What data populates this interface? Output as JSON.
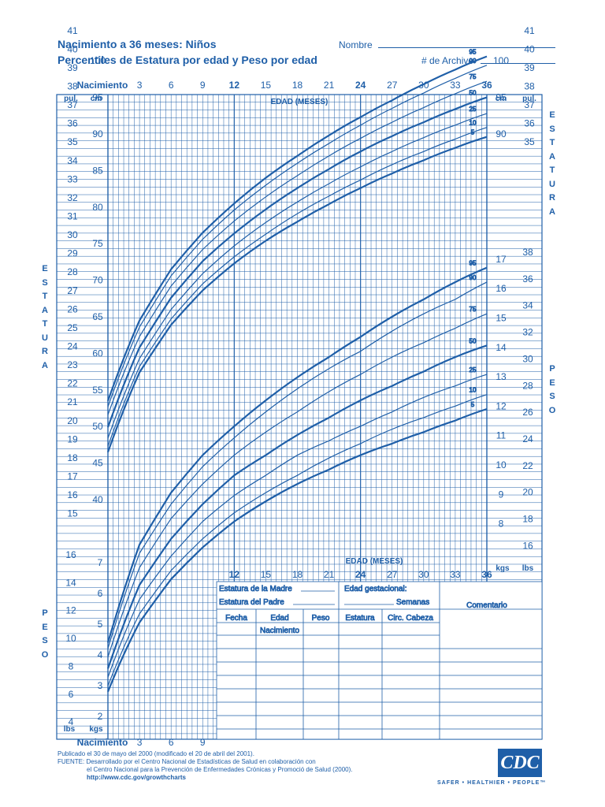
{
  "header": {
    "title_line1": "Nacimiento a 36 meses:  Niños",
    "title_line2": "Percentiles de Estatura por edad y Peso por edad",
    "name_label": "Nombre",
    "record_label": "# de Archivo"
  },
  "axis": {
    "age_top_labels": [
      "Nacimiento",
      "3",
      "6",
      "9",
      "12",
      "15",
      "18",
      "21",
      "24",
      "27",
      "30",
      "33",
      "36"
    ],
    "age_bottom_labels": [
      "Nacimiento",
      "3",
      "6",
      "9"
    ],
    "age_mid_labels": [
      "12",
      "15",
      "18",
      "21",
      "24",
      "27",
      "30",
      "33",
      "36"
    ],
    "edad_label": "EDAD (MESES)",
    "pul_label": "pul.",
    "cm_label": "cm",
    "kgs_label": "kgs",
    "lbs_label": "lbs",
    "left_inches": [
      "41",
      "40",
      "39",
      "38",
      "37",
      "36",
      "35",
      "34",
      "33",
      "32",
      "31",
      "30",
      "29",
      "28",
      "27",
      "26",
      "25",
      "24",
      "23",
      "22",
      "21",
      "20",
      "19",
      "18",
      "17",
      "16",
      "15"
    ],
    "left_cm": [
      "100",
      "95",
      "90",
      "85",
      "80",
      "75",
      "70",
      "65",
      "60",
      "55",
      "50",
      "45",
      "40"
    ],
    "right_inches_top": [
      "41",
      "40",
      "39",
      "38",
      "37",
      "36",
      "35"
    ],
    "right_cm_top": [
      "100",
      "95",
      "90"
    ],
    "right_kg": [
      "17",
      "16",
      "15",
      "14",
      "13",
      "12",
      "11",
      "10",
      "9",
      "8"
    ],
    "right_lbs": [
      "38",
      "36",
      "34",
      "32",
      "30",
      "28",
      "26",
      "24",
      "22",
      "20",
      "18",
      "16"
    ],
    "left_lbs": [
      "16",
      "14",
      "12",
      "10",
      "8",
      "6",
      "4"
    ],
    "left_kg": [
      "7",
      "6",
      "5",
      "4",
      "3",
      "2"
    ],
    "estatura_letters": [
      "E",
      "S",
      "T",
      "A",
      "T",
      "U",
      "R",
      "A"
    ],
    "peso_letters": [
      "P",
      "E",
      "S",
      "O"
    ]
  },
  "table": {
    "mother_height": "Estatura de la Madre",
    "father_height": "Estatura del Padre",
    "gest_age": "Edad gestacional:",
    "weeks": "Semanas",
    "comment": "Comentario",
    "columns": [
      "Fecha",
      "Edad",
      "Peso",
      "Estatura",
      "Circ. Cabeza"
    ],
    "edad_sub": "Nacimiento"
  },
  "footer": {
    "line1": "Publicado el 30 de mayo del 2000 (modificado el 20 de abril del 2001).",
    "line2": "FUENTE: Desarrollado por el Centro Nacional de Estadísticas de Salud en colaboración con",
    "line3": "el Centro Nacional para la Prevención de Enfermedades Crónicas y Promoció de Salud (2000).",
    "line4": "http://www.cdc.gov/growthcharts",
    "logo": "CDC",
    "tagline": "SAFER • HEALTHIER • PEOPLE™"
  },
  "chart_data": [
    {
      "type": "line",
      "x": [
        0,
        3,
        6,
        9,
        12,
        15,
        18,
        21,
        24,
        27,
        30,
        33,
        36
      ],
      "xlim": [
        0,
        36
      ],
      "ylim": [
        40,
        104
      ],
      "series": [
        {
          "name": "95",
          "values": [
            53.5,
            64.5,
            71.5,
            76.5,
            80.5,
            84,
            87,
            89.8,
            92.3,
            94.6,
            96.8,
            98.8,
            100.6
          ]
        },
        {
          "name": "90",
          "values": [
            52.7,
            63.6,
            70.6,
            75.6,
            79.6,
            83,
            86,
            88.7,
            91.2,
            93.5,
            95.6,
            97.6,
            99.4
          ]
        },
        {
          "name": "75",
          "values": [
            51.6,
            62.3,
            69.2,
            74.2,
            78.1,
            81.4,
            84.3,
            87,
            89.4,
            91.6,
            93.6,
            95.5,
            97.2
          ]
        },
        {
          "name": "50",
          "values": [
            49.9,
            60.8,
            67.6,
            72.6,
            76.4,
            79.7,
            82.6,
            85.2,
            87.6,
            89.7,
            91.6,
            93.4,
            95
          ]
        },
        {
          "name": "25",
          "values": [
            48.4,
            59.3,
            66,
            70.9,
            74.7,
            77.9,
            80.7,
            83.2,
            85.5,
            87.6,
            89.5,
            91.2,
            92.8
          ]
        },
        {
          "name": "10",
          "values": [
            47.3,
            58.2,
            64.7,
            69.5,
            73.2,
            76.3,
            79.1,
            81.5,
            83.7,
            85.8,
            87.6,
            89.3,
            90.9
          ]
        },
        {
          "name": "5",
          "values": [
            46.5,
            57.4,
            63.9,
            68.6,
            72.3,
            75.4,
            78,
            80.4,
            82.6,
            84.6,
            86.4,
            88.1,
            89.6
          ]
        }
      ]
    },
    {
      "type": "line",
      "x": [
        0,
        3,
        6,
        9,
        12,
        15,
        18,
        21,
        24,
        27,
        30,
        33,
        36
      ],
      "xlim": [
        0,
        36
      ],
      "ylim": [
        1.6,
        18.5
      ],
      "series": [
        {
          "name": "95",
          "values": [
            4.4,
            7.8,
            9.6,
            10.9,
            11.9,
            12.8,
            13.6,
            14.3,
            15,
            15.7,
            16.3,
            16.9,
            17.4
          ]
        },
        {
          "name": "90",
          "values": [
            4.2,
            7.5,
            9.2,
            10.5,
            11.5,
            12.4,
            13.2,
            13.9,
            14.5,
            15.2,
            15.8,
            16.3,
            16.9
          ]
        },
        {
          "name": "75",
          "values": [
            3.9,
            7,
            8.7,
            9.9,
            10.9,
            11.7,
            12.4,
            13.1,
            13.7,
            14.3,
            14.8,
            15.3,
            15.8
          ]
        },
        {
          "name": "50",
          "values": [
            3.5,
            6.4,
            8,
            9.2,
            10.2,
            10.9,
            11.6,
            12.2,
            12.8,
            13.3,
            13.8,
            14.3,
            14.7
          ]
        },
        {
          "name": "25",
          "values": [
            3.2,
            5.9,
            7.4,
            8.6,
            9.5,
            10.2,
            10.9,
            11.4,
            11.9,
            12.4,
            12.9,
            13.3,
            13.7
          ]
        },
        {
          "name": "10",
          "values": [
            2.9,
            5.4,
            6.9,
            8,
            8.9,
            9.6,
            10.2,
            10.8,
            11.3,
            11.8,
            12.2,
            12.6,
            13
          ]
        },
        {
          "name": "5",
          "values": [
            2.7,
            5.1,
            6.6,
            7.7,
            8.6,
            9.3,
            9.9,
            10.4,
            10.9,
            11.3,
            11.7,
            12.1,
            12.5
          ]
        }
      ]
    }
  ]
}
